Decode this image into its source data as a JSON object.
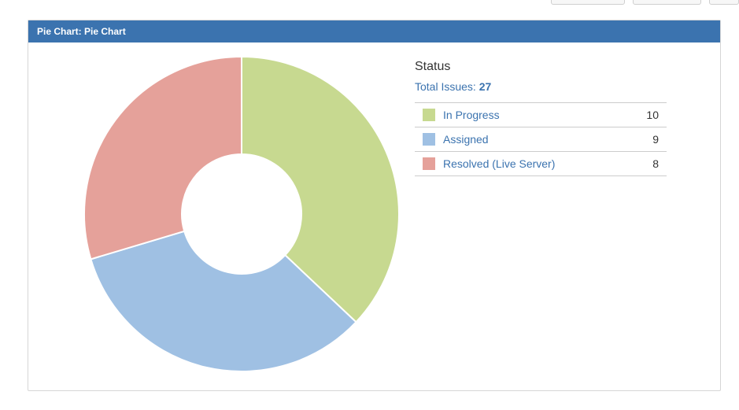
{
  "panel": {
    "title": "Pie Chart: Pie Chart"
  },
  "legend": {
    "title": "Status",
    "total_label": "Total Issues:",
    "total_value": "27"
  },
  "chart_data": {
    "type": "pie",
    "style": "donut",
    "categories": [
      "In Progress",
      "Assigned",
      "Resolved (Live Server)"
    ],
    "values": [
      10,
      9,
      8
    ],
    "colors": [
      "#c7d990",
      "#9fc0e3",
      "#e5a19a"
    ],
    "title": "",
    "legend_position": "right"
  },
  "header_buttons": [
    {
      "label": ""
    },
    {
      "label": ""
    },
    {
      "label": ""
    }
  ]
}
